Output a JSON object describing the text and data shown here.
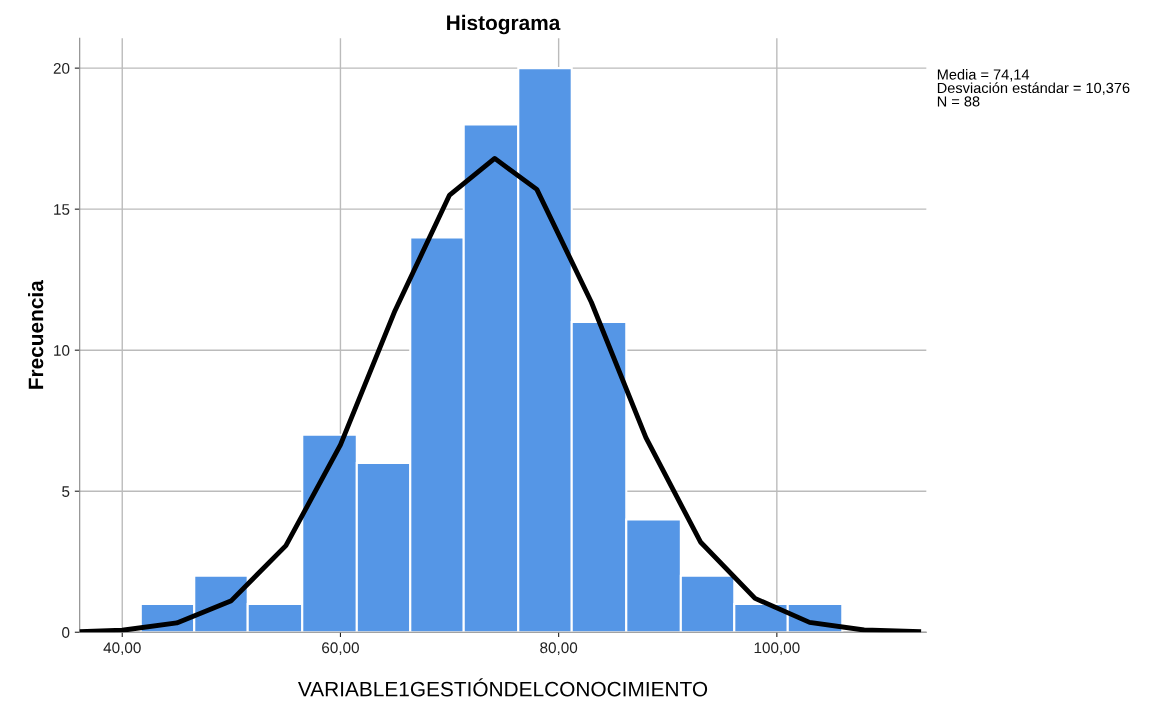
{
  "chart_data": {
    "type": "histogram",
    "title": "Histograma",
    "xlabel": "VARIABLE1GESTIÓNDELCONOCIMIENTO",
    "ylabel": "Frecuencia",
    "bins": [
      41.7,
      46.6,
      51.5,
      56.5,
      61.5,
      66.4,
      71.3,
      76.3,
      81.2,
      86.2,
      91.2,
      96.1,
      101.0,
      106.0
    ],
    "values": [
      1,
      2,
      1,
      7,
      6,
      14,
      18,
      20,
      11,
      4,
      2,
      1,
      1
    ],
    "color": "#5596e6",
    "series": [
      {
        "type": "line",
        "color": "#000000",
        "x": [
          36.1,
          40,
          45,
          50,
          55,
          60,
          65,
          70,
          74.14,
          78,
          83,
          88,
          93,
          98,
          103,
          108,
          113
        ],
        "values": [
          0.02,
          0.07,
          0.33,
          1.12,
          3.07,
          6.64,
          11.4,
          15.5,
          16.8,
          15.7,
          11.7,
          6.9,
          3.2,
          1.2,
          0.35,
          0.08,
          0.02
        ]
      }
    ],
    "xlim": [
      36.1,
      113.7
    ],
    "ylim": [
      0,
      21.06
    ],
    "xticks": [
      {
        "value": 40,
        "label": "40,00"
      },
      {
        "value": 60,
        "label": "60,00"
      },
      {
        "value": 80,
        "label": "80,00"
      },
      {
        "value": 100,
        "label": "100,00"
      }
    ],
    "yticks": [
      0,
      5,
      10,
      15,
      20
    ],
    "grid": true,
    "annotations": [
      "Media = 74,14",
      "Desviación estándar = 10,376",
      "N = 88"
    ]
  }
}
